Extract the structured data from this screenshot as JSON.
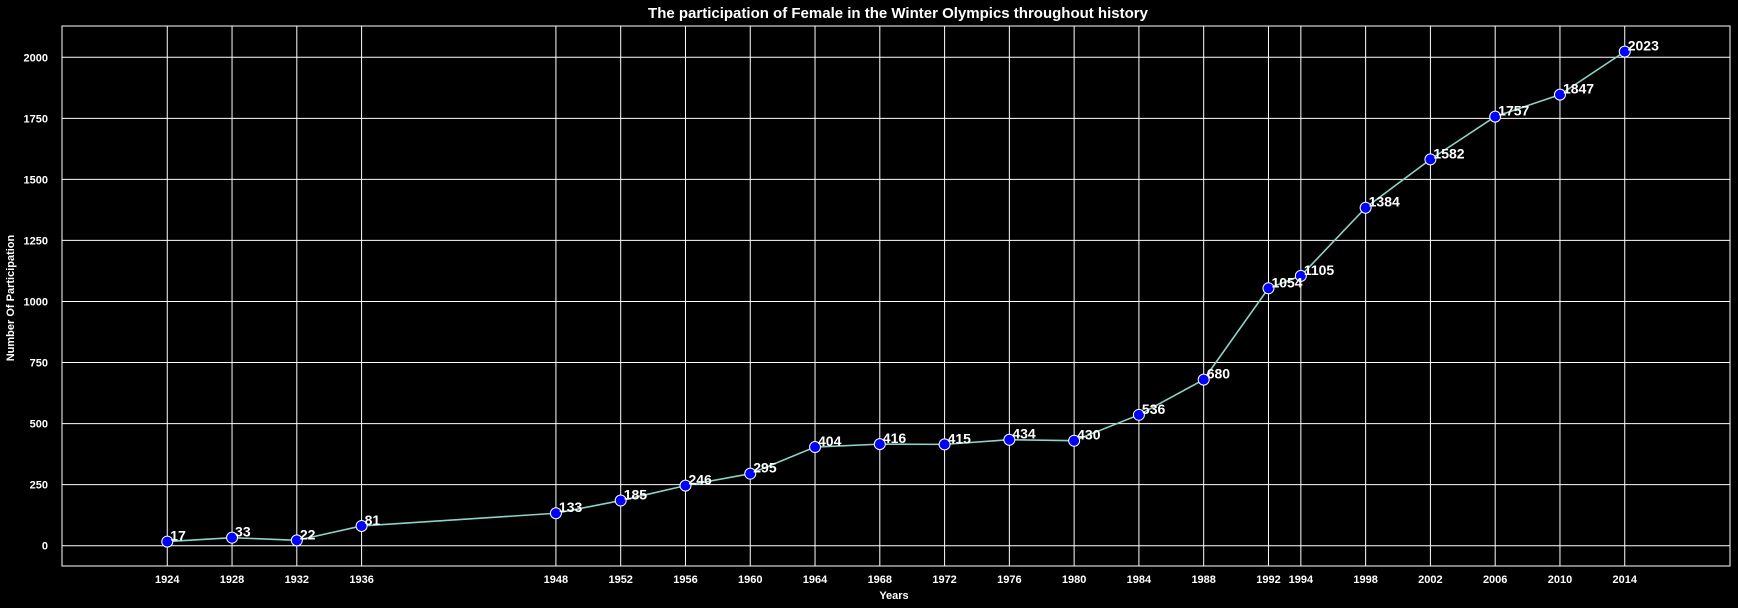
{
  "chart_data": {
    "type": "line",
    "title": "The participation of Female in the Winter Olympics throughout history",
    "xlabel": "Years",
    "ylabel": "Number Of Participation",
    "x": [
      1924,
      1928,
      1932,
      1936,
      1948,
      1952,
      1956,
      1960,
      1964,
      1968,
      1972,
      1976,
      1980,
      1984,
      1988,
      1992,
      1994,
      1998,
      2002,
      2006,
      2010,
      2014
    ],
    "y": [
      17,
      33,
      22,
      81,
      133,
      185,
      246,
      295,
      404,
      416,
      415,
      434,
      430,
      536,
      680,
      1054,
      1105,
      1384,
      1582,
      1757,
      1847,
      2023
    ],
    "data_labels": [
      "17",
      "33",
      "22",
      "81",
      "133",
      "185",
      "246",
      "295",
      "404",
      "416",
      "415",
      "434",
      "430",
      "536",
      "680",
      "1054",
      "1105",
      "1384",
      "1582",
      "1757",
      "1847",
      "2023"
    ],
    "xticks": [
      "1924",
      "1928",
      "1932",
      "1936",
      "1948",
      "1952",
      "1956",
      "1960",
      "1964",
      "1968",
      "1972",
      "1976",
      "1980",
      "1984",
      "1988",
      "1992",
      "1994",
      "1998",
      "2002",
      "2006",
      "2010",
      "2014"
    ],
    "yticks": [
      0,
      250,
      500,
      750,
      1000,
      1250,
      1500,
      1750,
      2000
    ],
    "ytick_labels": [
      "0",
      "250",
      "500",
      "750",
      "1000",
      "1250",
      "1500",
      "1750",
      "2000"
    ],
    "xlim": [
      1917.5,
      2020.5
    ],
    "ylim": [
      -83,
      2128
    ],
    "grid": true,
    "background_color": "#000000",
    "grid_color": "#ffffff",
    "line_color": "#8dd3c7",
    "marker_color": "#0000ff",
    "marker_edge_color": "#ffffff",
    "text_color": "#ffffff"
  }
}
